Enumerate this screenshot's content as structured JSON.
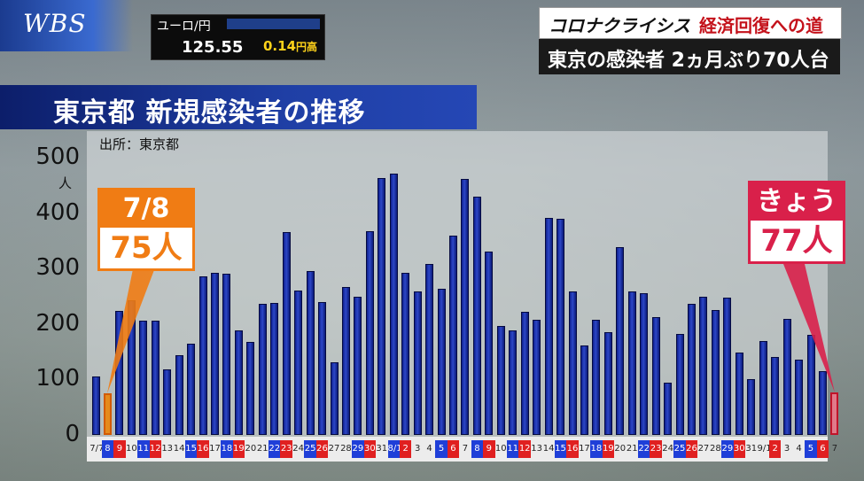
{
  "broadcast": {
    "logo": "WBS",
    "ticker": {
      "pair": "ユーロ/円",
      "rate": "125.55",
      "change": "0.14",
      "change_unit": "円高",
      "change_color": "#ffd21a"
    },
    "header_series": "コロナクライシス",
    "header_topic": "経済回復への道",
    "headline": "東京の感染者 2ヵ月ぶり70人台"
  },
  "chart_data": {
    "type": "bar",
    "title": "東京都 新規感染者の推移",
    "source": "出所：東京都",
    "ylabel": "人",
    "ylim": [
      0,
      500
    ],
    "yticks": [
      0,
      100,
      200,
      300,
      400,
      500
    ],
    "categories": [
      "7/7",
      "8",
      "9",
      "10",
      "11",
      "12",
      "13",
      "14",
      "15",
      "16",
      "17",
      "18",
      "19",
      "20",
      "21",
      "22",
      "23",
      "24",
      "25",
      "26",
      "27",
      "28",
      "29",
      "30",
      "31",
      "8/1",
      "2",
      "3",
      "4",
      "5",
      "6",
      "7",
      "8",
      "9",
      "10",
      "11",
      "12",
      "13",
      "14",
      "15",
      "16",
      "17",
      "18",
      "19",
      "20",
      "21",
      "22",
      "23",
      "24",
      "25",
      "26",
      "27",
      "28",
      "29",
      "30",
      "31",
      "9/1",
      "2",
      "3",
      "4",
      "5",
      "6",
      "7"
    ],
    "weekend_saturday": [
      "11",
      "18",
      "25",
      "8/1",
      "8",
      "15",
      "22",
      "29",
      "5"
    ],
    "weekend_sunday": [
      "12",
      "19",
      "26",
      "2",
      "9",
      "16",
      "23",
      "30",
      "6"
    ],
    "values": [
      106,
      75,
      224,
      243,
      206,
      206,
      119,
      143,
      165,
      286,
      293,
      290,
      188,
      168,
      237,
      238,
      366,
      260,
      295,
      239,
      131,
      266,
      250,
      367,
      463,
      472,
      292,
      258,
      309,
      263,
      360,
      462,
      429,
      331,
      197,
      188,
      222,
      207,
      392,
      389,
      258,
      161,
      207,
      186,
      339,
      258,
      255,
      212,
      95,
      182,
      236,
      250,
      226,
      248,
      148,
      100,
      170,
      141,
      210,
      136,
      181,
      115,
      77
    ],
    "colors": {
      "bar": "#1a2fb0",
      "saturday_label": "#1f3fd8",
      "sunday_label": "#e02020"
    },
    "callouts": [
      {
        "date": "7/8",
        "value": "75",
        "unit": "人",
        "color": "#f07c14"
      },
      {
        "date": "きょう",
        "value": "77",
        "unit": "人",
        "color": "#d9204a"
      }
    ]
  }
}
